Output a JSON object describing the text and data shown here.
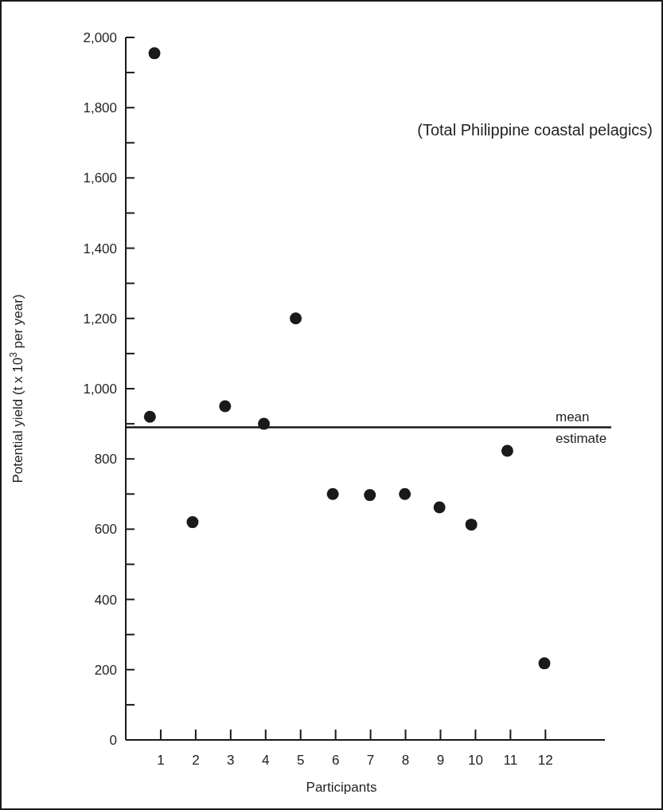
{
  "chart_data": {
    "type": "scatter",
    "xlabel": "Participants",
    "ylabel": "Potential yield (t x 10$^{3}$ per year)",
    "annotations": [
      "(Total Philippine coastal pelagics)"
    ],
    "x": [
      0.69,
      0.82,
      1.91,
      2.84,
      3.95,
      4.86,
      5.92,
      6.98,
      7.98,
      8.97,
      9.88,
      10.91,
      11.97
    ],
    "values": [
      920,
      1955,
      620,
      950,
      900,
      1200,
      700,
      697,
      700,
      662,
      613,
      823,
      218
    ],
    "color": "#1a1a1a",
    "marker": "circle",
    "xlim": [
      0,
      13.7
    ],
    "xticks": [
      1,
      2,
      3,
      4,
      5,
      6,
      7,
      8,
      9,
      10,
      11,
      12
    ],
    "ylim": [
      0,
      2000
    ],
    "yticks": [
      0,
      {
        "value": 100,
        "label": null
      },
      200,
      {
        "value": 300,
        "label": null
      },
      400,
      {
        "value": 500,
        "label": null
      },
      600,
      {
        "value": 700,
        "label": null
      },
      800,
      {
        "value": 900,
        "label": null
      },
      {
        "value": 1000,
        "label": "1,000"
      },
      {
        "value": 1100,
        "label": null
      },
      {
        "value": 1200,
        "label": "1,200"
      },
      {
        "value": 1300,
        "label": null
      },
      {
        "value": 1400,
        "label": "1,400"
      },
      {
        "value": 1500,
        "label": null
      },
      {
        "value": 1600,
        "label": "1,600"
      },
      {
        "value": 1700,
        "label": null
      },
      {
        "value": 1800,
        "label": "1,800"
      },
      {
        "value": 1900,
        "label": null
      },
      {
        "value": 2000,
        "label": "2,000"
      }
    ],
    "ref_lines": [
      {
        "axis": "y",
        "value": 890,
        "label": "mean estimate",
        "color": "#1a1a1a"
      }
    ],
    "grid": false
  }
}
